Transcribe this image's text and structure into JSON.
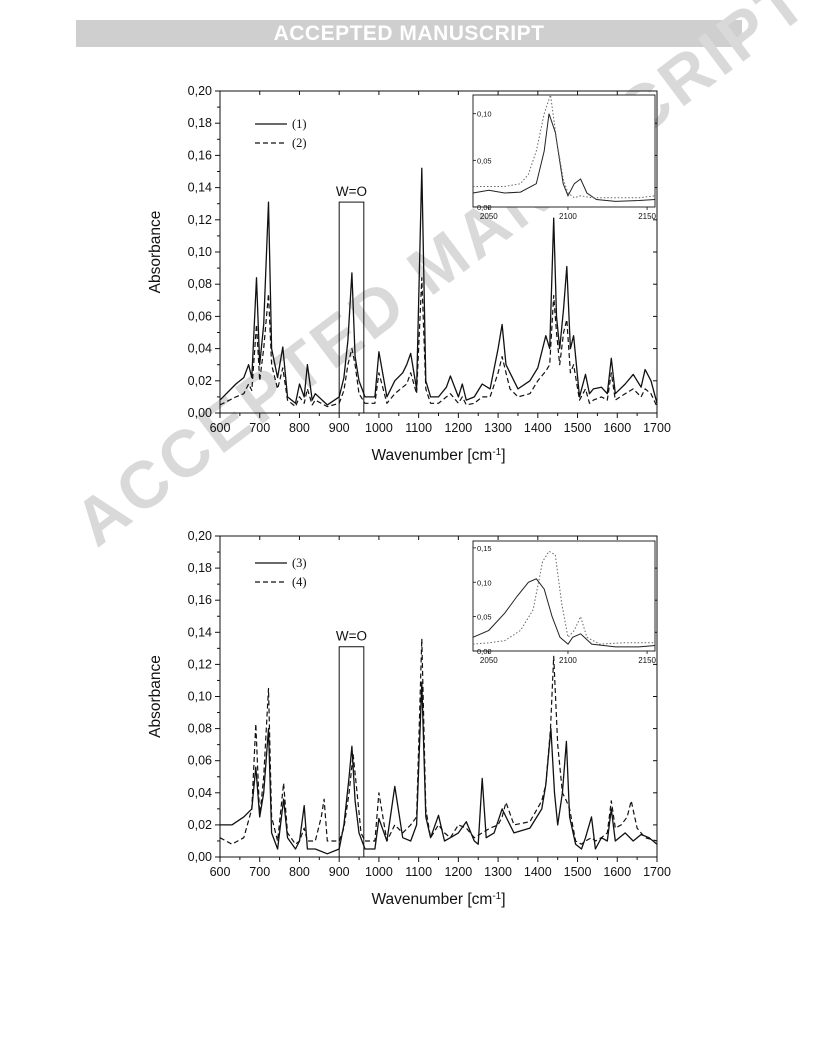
{
  "banner": "ACCEPTED MANUSCRIPT",
  "watermark": "ACCEPTED MANUSCRIPT",
  "chart_data": [
    {
      "type": "line",
      "xlabel": "Wavenumber [cm",
      "xlabel_sup": "-1",
      "xlabel_tail": "]",
      "ylabel": "Absorbance",
      "xlim": [
        600,
        1700
      ],
      "ylim": [
        0,
        0.2
      ],
      "x_ticks": [
        "600",
        "700",
        "800",
        "900",
        "1000",
        "1100",
        "1200",
        "1300",
        "1400",
        "1500",
        "1600",
        "1700"
      ],
      "y_ticks": [
        "0,00",
        "0,02",
        "0,04",
        "0,06",
        "0,08",
        "0,10",
        "0,12",
        "0,14",
        "0,16",
        "0,18",
        "0,20"
      ],
      "annotation": "W=O",
      "annotation_box": [
        900,
        962,
        0,
        0.131
      ],
      "legend_position": "top-left",
      "series": [
        {
          "name": "(1)",
          "style": "solid",
          "x": [
            600,
            640,
            660,
            672,
            680,
            692,
            700,
            710,
            722,
            730,
            745,
            758,
            770,
            790,
            800,
            812,
            820,
            832,
            840,
            870,
            900,
            912,
            922,
            932,
            940,
            950,
            965,
            990,
            1000,
            1020,
            1040,
            1060,
            1070,
            1080,
            1095,
            1108,
            1118,
            1130,
            1150,
            1170,
            1180,
            1200,
            1210,
            1220,
            1240,
            1260,
            1280,
            1300,
            1310,
            1320,
            1330,
            1350,
            1380,
            1400,
            1420,
            1430,
            1440,
            1447,
            1455,
            1465,
            1473,
            1482,
            1490,
            1505,
            1520,
            1530,
            1540,
            1560,
            1575,
            1585,
            1595,
            1620,
            1640,
            1660,
            1670,
            1685,
            1700
          ],
          "y": [
            0.008,
            0.018,
            0.022,
            0.03,
            0.022,
            0.084,
            0.03,
            0.055,
            0.131,
            0.04,
            0.022,
            0.041,
            0.01,
            0.006,
            0.018,
            0.01,
            0.03,
            0.008,
            0.012,
            0.005,
            0.01,
            0.022,
            0.045,
            0.087,
            0.035,
            0.02,
            0.01,
            0.01,
            0.038,
            0.01,
            0.02,
            0.025,
            0.03,
            0.037,
            0.015,
            0.152,
            0.02,
            0.01,
            0.01,
            0.016,
            0.023,
            0.01,
            0.018,
            0.008,
            0.01,
            0.018,
            0.015,
            0.04,
            0.055,
            0.03,
            0.025,
            0.015,
            0.02,
            0.028,
            0.048,
            0.04,
            0.121,
            0.06,
            0.04,
            0.065,
            0.091,
            0.04,
            0.048,
            0.01,
            0.024,
            0.012,
            0.015,
            0.016,
            0.012,
            0.034,
            0.012,
            0.018,
            0.024,
            0.016,
            0.027,
            0.02,
            0.006
          ]
        },
        {
          "name": "(2)",
          "style": "dashed",
          "x": [
            600,
            640,
            660,
            672,
            680,
            692,
            700,
            710,
            722,
            730,
            745,
            758,
            770,
            790,
            800,
            812,
            820,
            832,
            840,
            870,
            900,
            912,
            922,
            932,
            940,
            950,
            965,
            990,
            1000,
            1020,
            1040,
            1060,
            1070,
            1080,
            1095,
            1108,
            1118,
            1130,
            1150,
            1170,
            1180,
            1200,
            1210,
            1220,
            1240,
            1260,
            1280,
            1300,
            1310,
            1320,
            1330,
            1350,
            1380,
            1400,
            1420,
            1430,
            1440,
            1447,
            1455,
            1465,
            1473,
            1482,
            1490,
            1505,
            1520,
            1530,
            1540,
            1560,
            1575,
            1585,
            1595,
            1620,
            1640,
            1660,
            1670,
            1685,
            1700
          ],
          "y": [
            0.005,
            0.01,
            0.012,
            0.018,
            0.014,
            0.055,
            0.02,
            0.04,
            0.074,
            0.03,
            0.015,
            0.028,
            0.008,
            0.004,
            0.01,
            0.006,
            0.015,
            0.005,
            0.008,
            0.004,
            0.006,
            0.014,
            0.03,
            0.04,
            0.03,
            0.012,
            0.006,
            0.006,
            0.025,
            0.006,
            0.012,
            0.016,
            0.018,
            0.025,
            0.012,
            0.084,
            0.015,
            0.006,
            0.006,
            0.01,
            0.012,
            0.006,
            0.01,
            0.005,
            0.006,
            0.01,
            0.01,
            0.025,
            0.035,
            0.025,
            0.015,
            0.01,
            0.012,
            0.02,
            0.026,
            0.03,
            0.073,
            0.05,
            0.03,
            0.05,
            0.058,
            0.025,
            0.03,
            0.008,
            0.015,
            0.006,
            0.008,
            0.01,
            0.008,
            0.025,
            0.008,
            0.012,
            0.015,
            0.01,
            0.015,
            0.012,
            0.004
          ]
        }
      ],
      "inset": {
        "xlim": [
          2040,
          2155
        ],
        "ylim": [
          0,
          0.12
        ],
        "x_ticks": [
          "2050",
          "2100",
          "2150"
        ],
        "y_ticks": [
          "0,00",
          "0,05",
          "0,10"
        ],
        "series": [
          {
            "style": "solid",
            "x": [
              2040,
              2050,
              2060,
              2070,
              2080,
              2085,
              2088,
              2092,
              2097,
              2100,
              2104,
              2108,
              2112,
              2118,
              2130,
              2145,
              2155
            ],
            "y": [
              0.015,
              0.018,
              0.015,
              0.016,
              0.025,
              0.06,
              0.1,
              0.08,
              0.025,
              0.012,
              0.025,
              0.03,
              0.015,
              0.008,
              0.006,
              0.007,
              0.008
            ]
          },
          {
            "style": "dotted",
            "x": [
              2040,
              2050,
              2060,
              2070,
              2075,
              2080,
              2085,
              2089,
              2093,
              2097,
              2100,
              2104,
              2108,
              2115,
              2130,
              2145,
              2155
            ],
            "y": [
              0.022,
              0.022,
              0.022,
              0.025,
              0.035,
              0.06,
              0.1,
              0.12,
              0.07,
              0.03,
              0.015,
              0.01,
              0.012,
              0.01,
              0.01,
              0.01,
              0.012
            ]
          }
        ]
      }
    },
    {
      "type": "line",
      "xlabel": "Wavenumber [cm",
      "xlabel_sup": "-1",
      "xlabel_tail": "]",
      "ylabel": "Absorbance",
      "xlim": [
        600,
        1700
      ],
      "ylim": [
        0,
        0.2
      ],
      "x_ticks": [
        "600",
        "700",
        "800",
        "900",
        "1000",
        "1100",
        "1200",
        "1300",
        "1400",
        "1500",
        "1600",
        "1700"
      ],
      "y_ticks": [
        "0,00",
        "0,02",
        "0,04",
        "0,06",
        "0,08",
        "0,10",
        "0,12",
        "0,14",
        "0,16",
        "0,18",
        "0,20"
      ],
      "annotation": "W=O",
      "annotation_box": [
        900,
        962,
        0,
        0.131
      ],
      "legend_position": "top-left",
      "series": [
        {
          "name": "(3)",
          "style": "solid",
          "x": [
            600,
            630,
            660,
            680,
            690,
            700,
            710,
            722,
            730,
            745,
            760,
            770,
            790,
            800,
            812,
            820,
            840,
            870,
            900,
            912,
            925,
            932,
            940,
            950,
            965,
            990,
            1000,
            1020,
            1040,
            1060,
            1080,
            1095,
            1108,
            1118,
            1130,
            1150,
            1165,
            1180,
            1200,
            1220,
            1240,
            1250,
            1260,
            1270,
            1290,
            1310,
            1320,
            1340,
            1380,
            1410,
            1420,
            1433,
            1442,
            1450,
            1462,
            1472,
            1480,
            1495,
            1510,
            1520,
            1535,
            1545,
            1560,
            1575,
            1585,
            1595,
            1620,
            1640,
            1660,
            1680,
            1700
          ],
          "y": [
            0.02,
            0.02,
            0.025,
            0.03,
            0.056,
            0.025,
            0.04,
            0.08,
            0.015,
            0.005,
            0.036,
            0.012,
            0.005,
            0.01,
            0.032,
            0.005,
            0.005,
            0.002,
            0.005,
            0.02,
            0.05,
            0.069,
            0.035,
            0.015,
            0.005,
            0.005,
            0.024,
            0.01,
            0.044,
            0.012,
            0.01,
            0.02,
            0.109,
            0.025,
            0.012,
            0.026,
            0.01,
            0.012,
            0.015,
            0.022,
            0.01,
            0.008,
            0.049,
            0.012,
            0.015,
            0.03,
            0.025,
            0.015,
            0.018,
            0.03,
            0.045,
            0.08,
            0.04,
            0.02,
            0.04,
            0.072,
            0.025,
            0.008,
            0.005,
            0.012,
            0.025,
            0.005,
            0.012,
            0.01,
            0.03,
            0.01,
            0.015,
            0.01,
            0.014,
            0.012,
            0.008
          ]
        },
        {
          "name": "(4)",
          "style": "dashed",
          "x": [
            600,
            630,
            660,
            680,
            690,
            700,
            710,
            722,
            730,
            745,
            760,
            770,
            790,
            800,
            812,
            820,
            840,
            855,
            862,
            870,
            900,
            912,
            925,
            935,
            945,
            955,
            965,
            990,
            1000,
            1020,
            1040,
            1060,
            1080,
            1095,
            1108,
            1118,
            1130,
            1150,
            1165,
            1180,
            1200,
            1220,
            1240,
            1260,
            1280,
            1300,
            1310,
            1320,
            1340,
            1380,
            1410,
            1420,
            1432,
            1440,
            1450,
            1462,
            1472,
            1480,
            1495,
            1510,
            1520,
            1535,
            1545,
            1560,
            1575,
            1585,
            1595,
            1610,
            1625,
            1635,
            1650,
            1670,
            1700
          ],
          "y": [
            0.012,
            0.008,
            0.012,
            0.03,
            0.083,
            0.025,
            0.05,
            0.105,
            0.025,
            0.01,
            0.046,
            0.015,
            0.008,
            0.01,
            0.018,
            0.01,
            0.01,
            0.025,
            0.036,
            0.01,
            0.01,
            0.018,
            0.04,
            0.064,
            0.04,
            0.015,
            0.01,
            0.01,
            0.04,
            0.01,
            0.02,
            0.015,
            0.02,
            0.025,
            0.136,
            0.03,
            0.012,
            0.02,
            0.015,
            0.012,
            0.02,
            0.018,
            0.012,
            0.015,
            0.018,
            0.02,
            0.025,
            0.034,
            0.02,
            0.022,
            0.035,
            0.045,
            0.08,
            0.125,
            0.07,
            0.04,
            0.035,
            0.03,
            0.01,
            0.008,
            0.01,
            0.012,
            0.01,
            0.012,
            0.015,
            0.035,
            0.018,
            0.02,
            0.025,
            0.035,
            0.018,
            0.012,
            0.01
          ]
        }
      ],
      "inset": {
        "xlim": [
          2040,
          2155
        ],
        "ylim": [
          0,
          0.16
        ],
        "x_ticks": [
          "2050",
          "2100",
          "2150"
        ],
        "y_ticks": [
          "0,00",
          "0,05",
          "0,10",
          "0,15"
        ],
        "series": [
          {
            "style": "solid",
            "x": [
              2040,
              2050,
              2060,
              2068,
              2075,
              2080,
              2085,
              2090,
              2095,
              2100,
              2103,
              2108,
              2115,
              2130,
              2145,
              2155
            ],
            "y": [
              0.02,
              0.03,
              0.055,
              0.08,
              0.1,
              0.105,
              0.09,
              0.05,
              0.02,
              0.01,
              0.02,
              0.025,
              0.01,
              0.006,
              0.006,
              0.008
            ]
          },
          {
            "style": "dotted",
            "x": [
              2040,
              2050,
              2060,
              2070,
              2078,
              2084,
              2088,
              2092,
              2096,
              2100,
              2104,
              2108,
              2112,
              2120,
              2135,
              2155
            ],
            "y": [
              0.01,
              0.012,
              0.015,
              0.03,
              0.06,
              0.13,
              0.145,
              0.14,
              0.07,
              0.02,
              0.03,
              0.05,
              0.02,
              0.01,
              0.012,
              0.012
            ]
          }
        ]
      }
    }
  ]
}
